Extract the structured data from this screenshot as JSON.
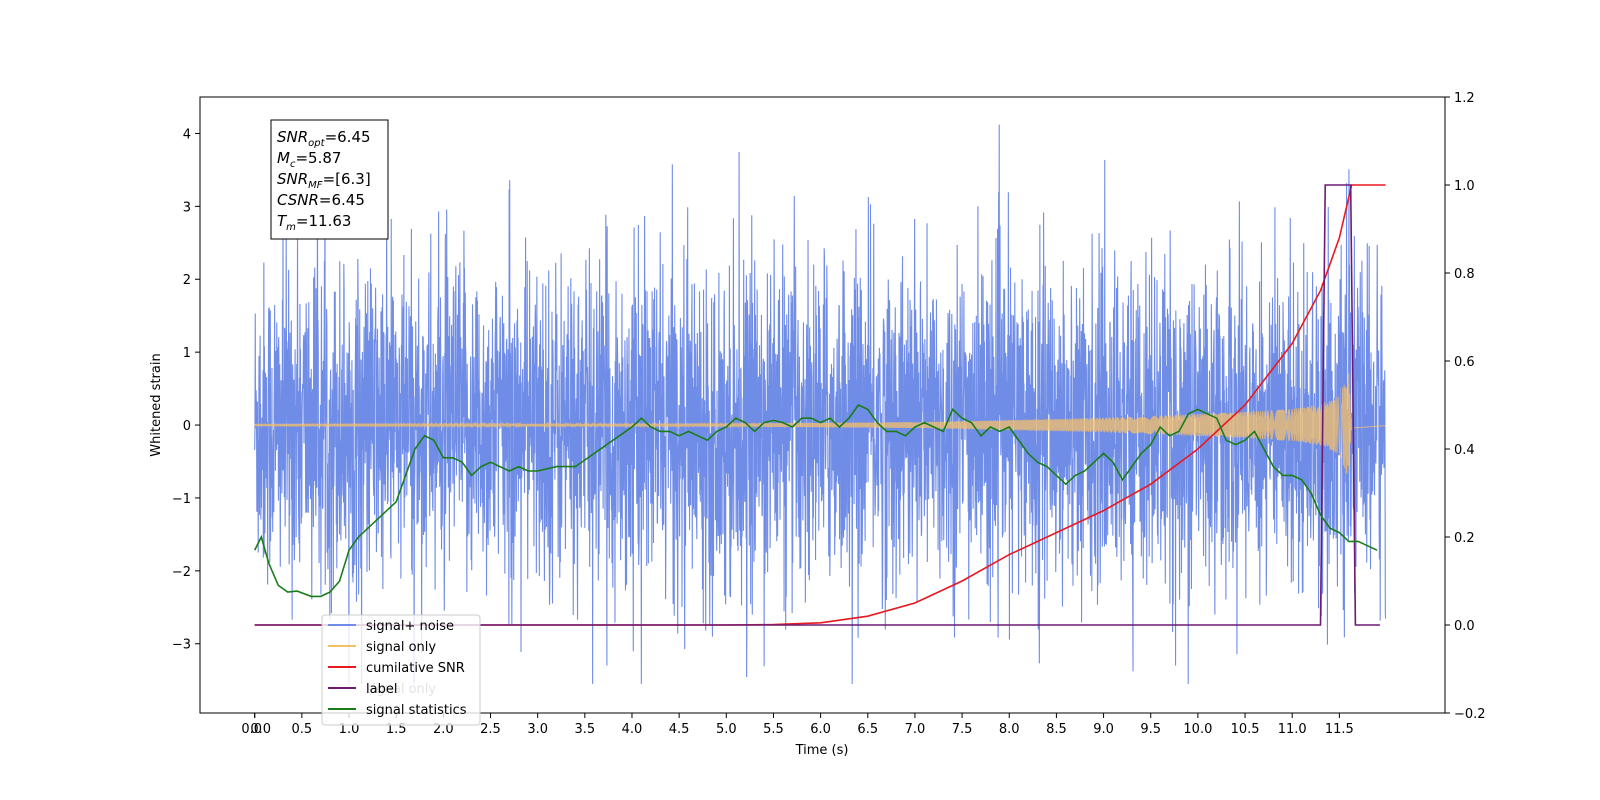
{
  "chart_data": {
    "type": "line",
    "title": "",
    "xlabel": "Time (s)",
    "ylabel": "Whitened strain",
    "y2label": "",
    "xlim": [
      -0.58,
      12.62
    ],
    "ylim": [
      -3.95,
      4.5
    ],
    "y2lim": [
      -0.2,
      1.2
    ],
    "grid": false,
    "x_ticks": [
      "0.0",
      "0.0",
      "0.5",
      "1.0",
      "1.5",
      "2.0",
      "2.5",
      "3.0",
      "3.5",
      "4.0",
      "4.5",
      "5.0",
      "5.5",
      "6.0",
      "6.5",
      "7.0",
      "7.5",
      "8.0",
      "8.5",
      "9.0",
      "9.5",
      "10.0",
      "10.5",
      "11.0",
      "11.5"
    ],
    "x_tick_values": [
      0.0,
      0.0,
      0.5,
      1.0,
      1.5,
      2.0,
      2.5,
      3.0,
      3.5,
      4.0,
      4.5,
      5.0,
      5.5,
      6.0,
      6.5,
      7.0,
      7.5,
      8.0,
      8.5,
      9.0,
      9.5,
      10.0,
      10.5,
      11.0,
      11.5
    ],
    "y_ticks": [
      "−3",
      "−2",
      "−1",
      "0",
      "1",
      "2",
      "3",
      "4"
    ],
    "y_tick_values": [
      -3,
      -2,
      -1,
      0,
      1,
      2,
      3,
      4
    ],
    "y2_ticks": [
      "−0.2",
      "0.0",
      "0.2",
      "0.4",
      "0.6",
      "0.8",
      "1.0",
      "1.2"
    ],
    "y2_tick_values": [
      -0.2,
      0.0,
      0.2,
      0.4,
      0.6,
      0.8,
      1.0,
      1.2
    ],
    "legend_position": "lower-left",
    "series": [
      {
        "name": "signal+ noise",
        "color": "#6f8ce6",
        "axis": "left",
        "style": "noise",
        "t_range": [
          0.0,
          11.99
        ],
        "amplitude": 1.1
      },
      {
        "name": "signal only",
        "color": "#f5c06a",
        "axis": "left",
        "style": "chirp",
        "envelope_t": [
          0.0,
          5.0,
          7.0,
          8.0,
          9.0,
          10.0,
          10.5,
          11.0,
          11.3,
          11.5,
          11.6,
          11.63,
          11.99
        ],
        "envelope_v": [
          0.01,
          0.02,
          0.04,
          0.07,
          0.1,
          0.15,
          0.18,
          0.22,
          0.28,
          0.4,
          0.75,
          0.05,
          0.01
        ]
      },
      {
        "name": "cumilative SNR",
        "color": "#e8191e",
        "axis": "right",
        "x": [
          0.0,
          4.0,
          5.0,
          5.5,
          6.0,
          6.5,
          7.0,
          7.5,
          8.0,
          8.5,
          9.0,
          9.5,
          10.0,
          10.5,
          11.0,
          11.3,
          11.5,
          11.63,
          11.99
        ],
        "y": [
          0.0,
          0.0,
          0.0,
          0.001,
          0.005,
          0.02,
          0.05,
          0.1,
          0.16,
          0.21,
          0.26,
          0.32,
          0.4,
          0.5,
          0.64,
          0.76,
          0.88,
          1.0,
          1.0
        ]
      },
      {
        "name": "label",
        "color": "#6d1a73",
        "axis": "right",
        "x": [
          0.0,
          11.3,
          11.35,
          11.62,
          11.67,
          11.93
        ],
        "y": [
          0.0,
          0.0,
          1.0,
          1.0,
          0.0,
          0.0
        ]
      },
      {
        "name": "signal statistics",
        "color": "#1a7d1a",
        "axis": "right",
        "x": [
          0.0,
          0.07,
          0.15,
          0.25,
          0.35,
          0.45,
          0.6,
          0.7,
          0.8,
          0.9,
          1.0,
          1.1,
          1.2,
          1.3,
          1.4,
          1.5,
          1.6,
          1.7,
          1.8,
          1.9,
          2.0,
          2.1,
          2.2,
          2.3,
          2.4,
          2.5,
          2.6,
          2.7,
          2.8,
          2.9,
          3.0,
          3.2,
          3.4,
          3.6,
          3.8,
          4.0,
          4.1,
          4.2,
          4.3,
          4.4,
          4.5,
          4.6,
          4.7,
          4.8,
          4.9,
          5.0,
          5.1,
          5.2,
          5.3,
          5.4,
          5.5,
          5.6,
          5.7,
          5.8,
          5.9,
          6.0,
          6.1,
          6.2,
          6.3,
          6.4,
          6.5,
          6.6,
          6.7,
          6.8,
          6.9,
          7.0,
          7.1,
          7.2,
          7.3,
          7.4,
          7.5,
          7.6,
          7.7,
          7.8,
          7.9,
          8.0,
          8.1,
          8.2,
          8.3,
          8.4,
          8.5,
          8.6,
          8.7,
          8.8,
          8.9,
          9.0,
          9.1,
          9.2,
          9.3,
          9.4,
          9.5,
          9.6,
          9.7,
          9.8,
          9.9,
          10.0,
          10.1,
          10.2,
          10.3,
          10.4,
          10.5,
          10.6,
          10.7,
          10.8,
          10.9,
          11.0,
          11.1,
          11.2,
          11.3,
          11.4,
          11.5,
          11.6,
          11.7,
          11.8,
          11.9
        ],
        "y": [
          0.17,
          0.2,
          0.14,
          0.09,
          0.075,
          0.077,
          0.065,
          0.065,
          0.075,
          0.1,
          0.17,
          0.2,
          0.22,
          0.24,
          0.26,
          0.28,
          0.34,
          0.4,
          0.43,
          0.42,
          0.38,
          0.38,
          0.37,
          0.34,
          0.36,
          0.37,
          0.36,
          0.35,
          0.36,
          0.35,
          0.35,
          0.36,
          0.36,
          0.39,
          0.42,
          0.45,
          0.47,
          0.45,
          0.44,
          0.44,
          0.43,
          0.44,
          0.43,
          0.42,
          0.44,
          0.45,
          0.47,
          0.46,
          0.44,
          0.46,
          0.465,
          0.46,
          0.45,
          0.47,
          0.47,
          0.46,
          0.47,
          0.45,
          0.47,
          0.5,
          0.49,
          0.46,
          0.44,
          0.44,
          0.43,
          0.45,
          0.46,
          0.45,
          0.44,
          0.49,
          0.47,
          0.46,
          0.43,
          0.45,
          0.44,
          0.45,
          0.42,
          0.39,
          0.37,
          0.36,
          0.34,
          0.32,
          0.34,
          0.35,
          0.37,
          0.39,
          0.37,
          0.33,
          0.36,
          0.39,
          0.41,
          0.45,
          0.43,
          0.44,
          0.48,
          0.49,
          0.48,
          0.47,
          0.42,
          0.41,
          0.42,
          0.44,
          0.4,
          0.36,
          0.34,
          0.34,
          0.33,
          0.3,
          0.25,
          0.22,
          0.21,
          0.19,
          0.19,
          0.18,
          0.17
        ]
      }
    ],
    "annotation_lines": [
      {
        "label": "SNR",
        "sub": "opt",
        "value": "=6.45"
      },
      {
        "label": "M",
        "sub": "c",
        "value": "=5.87"
      },
      {
        "label": "SNR",
        "sub": "MF",
        "value": "=[6.3]"
      },
      {
        "label": "CSNR",
        "sub": "",
        "value": "=6.45"
      },
      {
        "label": "T",
        "sub": "m",
        "value": "=11.63"
      }
    ],
    "legend_ghost_text": "signal only"
  }
}
